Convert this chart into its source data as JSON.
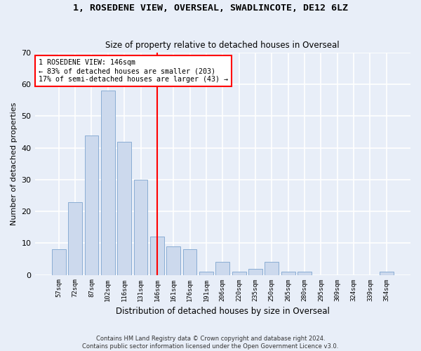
{
  "title": "1, ROSEDENE VIEW, OVERSEAL, SWADLINCOTE, DE12 6LZ",
  "subtitle": "Size of property relative to detached houses in Overseal",
  "xlabel": "Distribution of detached houses by size in Overseal",
  "ylabel": "Number of detached properties",
  "bar_color": "#ccd9ed",
  "bar_edge_color": "#8aadd4",
  "annotation_line1": "1 ROSEDENE VIEW: 146sqm",
  "annotation_line2": "← 83% of detached houses are smaller (203)",
  "annotation_line3": "17% of semi-detached houses are larger (43) →",
  "categories": [
    "57sqm",
    "72sqm",
    "87sqm",
    "102sqm",
    "116sqm",
    "131sqm",
    "146sqm",
    "161sqm",
    "176sqm",
    "191sqm",
    "206sqm",
    "220sqm",
    "235sqm",
    "250sqm",
    "265sqm",
    "280sqm",
    "295sqm",
    "309sqm",
    "324sqm",
    "339sqm",
    "354sqm"
  ],
  "values": [
    8,
    23,
    44,
    58,
    42,
    30,
    12,
    9,
    8,
    1,
    4,
    1,
    2,
    4,
    1,
    1,
    0,
    0,
    0,
    0,
    1
  ],
  "ylim": [
    0,
    70
  ],
  "yticks": [
    0,
    10,
    20,
    30,
    40,
    50,
    60,
    70
  ],
  "footer1": "Contains HM Land Registry data © Crown copyright and database right 2024.",
  "footer2": "Contains public sector information licensed under the Open Government Licence v3.0.",
  "bg_color": "#e8eef8",
  "grid_color": "#ffffff",
  "highlight_bar_index": 6
}
